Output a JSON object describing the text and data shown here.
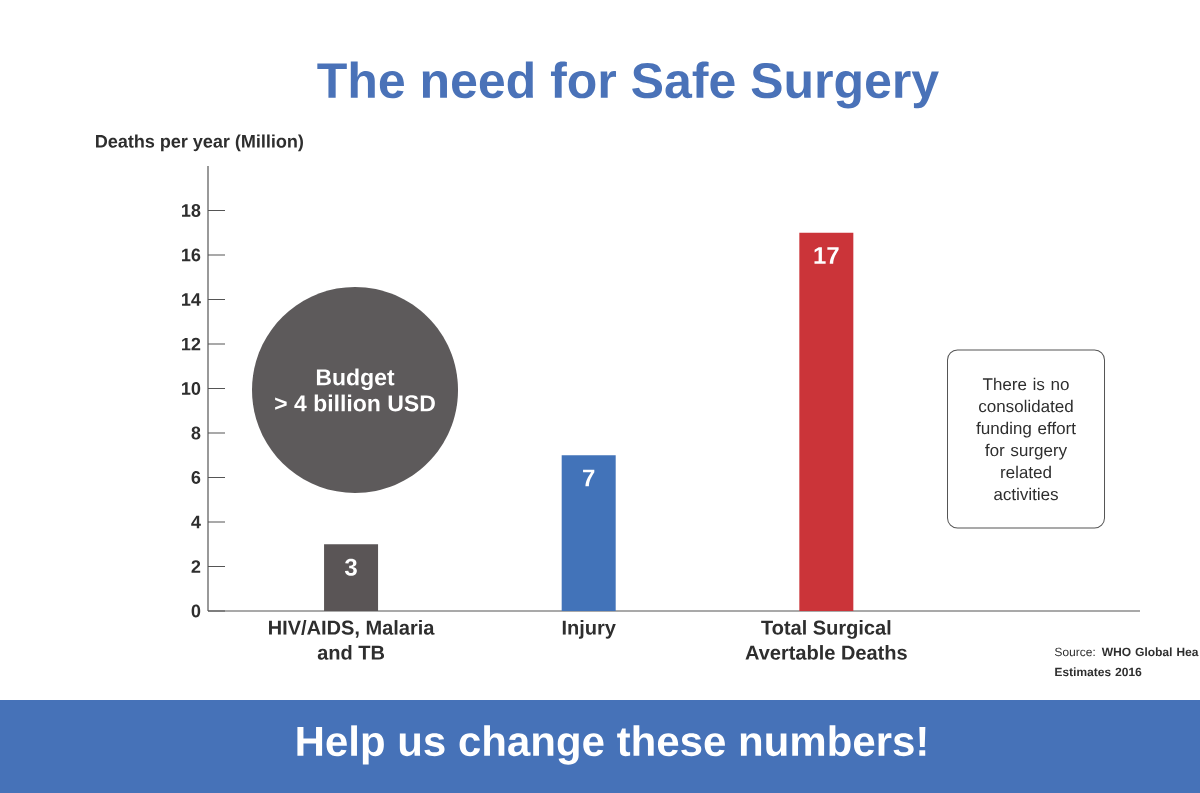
{
  "chart_data": {
    "type": "bar",
    "title": "The need for Safe Surgery",
    "ylabel": "Deaths per year (Million)",
    "categories": [
      "HIV/AIDS, Malaria and TB",
      "Injury",
      "Total Surgical Avertable Deaths"
    ],
    "values": [
      3,
      7,
      17
    ],
    "colors": [
      "#5a5556",
      "#4273b9",
      "#cb3439"
    ],
    "data_labels": true,
    "ylim": [
      0,
      20
    ],
    "yticks": [
      0,
      2,
      4,
      6,
      8,
      10,
      12,
      14,
      16,
      18
    ],
    "annotations": [
      "Budget",
      "> 4 billion USD",
      "There is no consolidated funding effort for surgery related activities",
      "Source: **WHO Global Hea Estimates 2016**",
      "Help us change these numbers!"
    ]
  }
}
